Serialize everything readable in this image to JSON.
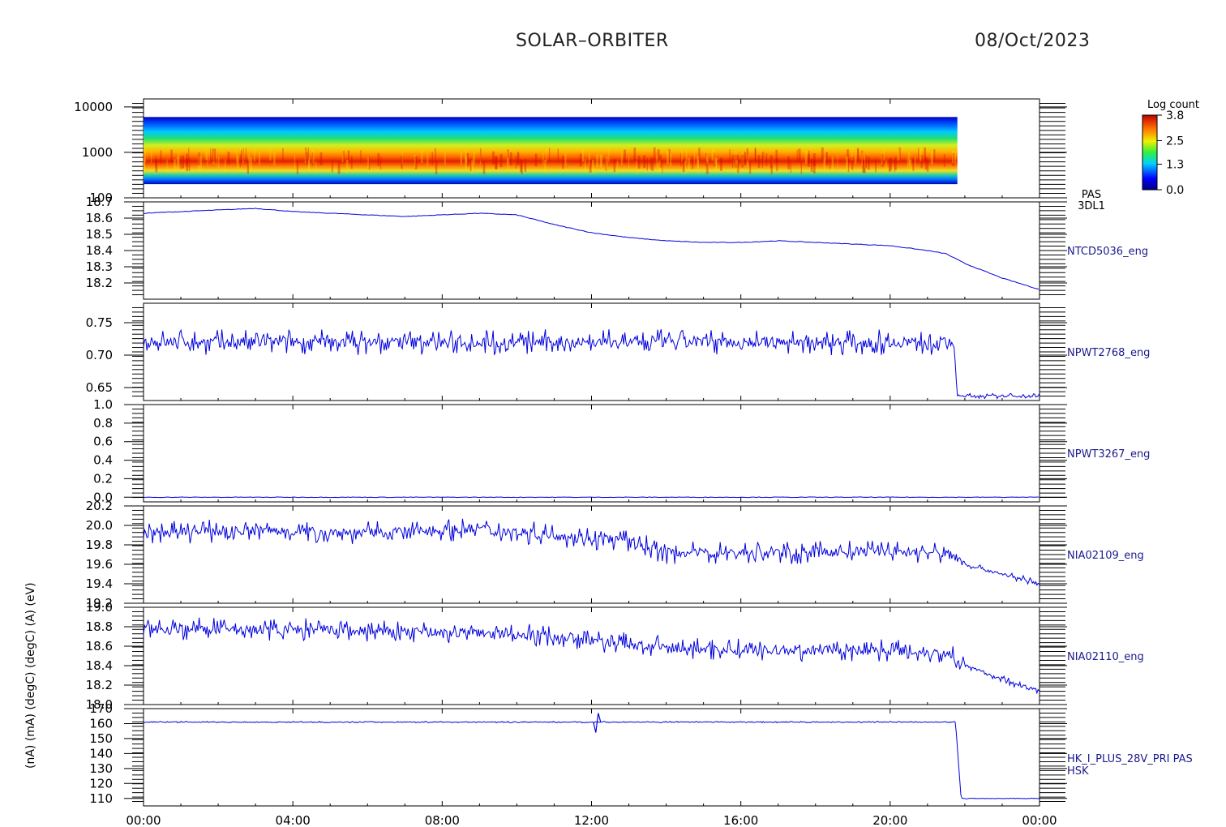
{
  "header": {
    "mission": "SOLAR–ORBITER",
    "date": "08/Oct/2023"
  },
  "colors": {
    "trace": "#0000dd",
    "axis": "#000000",
    "label_text": "#000000",
    "side_label_text": "#1a1a8c"
  },
  "x_axis": {
    "range_hours": [
      0,
      24
    ],
    "ticks": [
      "00:00",
      "04:00",
      "08:00",
      "12:00",
      "16:00",
      "20:00",
      "00:00"
    ]
  },
  "colorbar": {
    "title": "Log count",
    "ticks": [
      "3.8",
      "2.5",
      "1.3",
      "0.0"
    ],
    "range": [
      0.0,
      3.8
    ]
  },
  "left_axis_title": "(nA) (mA) (degC) (degC) (A) (eV)",
  "chart_data": [
    {
      "type": "heatmap",
      "panel": "PAS 3DL1 energy spectrogram",
      "side_label": [
        "PAS",
        "3DL1"
      ],
      "ylabel": "(eV)",
      "yscale": "log",
      "ylim": [
        100,
        15000
      ],
      "yticks": [
        "10000",
        "1000",
        "100"
      ],
      "data_coverage_hours": [
        0,
        21.8
      ],
      "peak_energy_eV": 650,
      "energy_band_eV": [
        200,
        6000
      ]
    },
    {
      "type": "line",
      "side_label": "NTCD5036_eng",
      "ylim": [
        18.1,
        18.7
      ],
      "yticks": [
        "18.7",
        "18.6",
        "18.5",
        "18.4",
        "18.3",
        "18.2"
      ],
      "x": [
        0,
        1,
        2,
        3,
        4,
        5,
        6,
        7,
        8,
        9,
        10,
        11,
        12,
        13,
        14,
        15,
        16,
        17,
        18,
        19,
        20,
        21,
        21.5,
        22,
        23,
        24
      ],
      "values": [
        18.63,
        18.64,
        18.65,
        18.66,
        18.64,
        18.63,
        18.62,
        18.61,
        18.62,
        18.63,
        18.62,
        18.56,
        18.51,
        18.48,
        18.46,
        18.45,
        18.45,
        18.46,
        18.45,
        18.44,
        18.43,
        18.4,
        18.38,
        18.32,
        18.23,
        18.16
      ]
    },
    {
      "type": "line",
      "side_label": "NPWT2768_eng",
      "ylim": [
        0.63,
        0.78
      ],
      "yticks": [
        "0.75",
        "0.70",
        "0.65"
      ],
      "x": [
        0,
        12,
        21.7,
        21.8,
        24
      ],
      "values": [
        0.72,
        0.72,
        0.72,
        0.637,
        0.637
      ],
      "noise_amplitude": [
        0.02,
        0.004
      ]
    },
    {
      "type": "line",
      "side_label": "NPWT3267_eng",
      "ylim": [
        -0.05,
        1.0
      ],
      "yticks": [
        "1.0",
        "0.8",
        "0.6",
        "0.4",
        "0.2",
        "0.0"
      ],
      "x": [
        0,
        24
      ],
      "values": [
        0.0,
        0.0
      ]
    },
    {
      "type": "line",
      "side_label": "NIA02109_eng",
      "ylim": [
        19.2,
        20.2
      ],
      "yticks": [
        "20.2",
        "20.0",
        "19.8",
        "19.6",
        "19.4",
        "19.2"
      ],
      "x": [
        0,
        3,
        6,
        9,
        11,
        13,
        14,
        16,
        18,
        20,
        21.7,
        22,
        23,
        24
      ],
      "values": [
        19.92,
        19.95,
        19.92,
        19.97,
        19.9,
        19.84,
        19.72,
        19.72,
        19.72,
        19.74,
        19.7,
        19.6,
        19.5,
        19.4
      ],
      "noise_amplitude": [
        0.12,
        0.04
      ]
    },
    {
      "type": "line",
      "side_label": "NIA02110_eng",
      "ylim": [
        18.0,
        19.0
      ],
      "yticks": [
        "19.0",
        "18.8",
        "18.6",
        "18.4",
        "18.2",
        "18.0"
      ],
      "x": [
        0,
        4,
        8,
        10.5,
        12,
        14,
        16,
        18,
        20,
        21.7,
        22,
        23,
        24
      ],
      "values": [
        18.78,
        18.77,
        18.74,
        18.72,
        18.66,
        18.58,
        18.56,
        18.56,
        18.56,
        18.52,
        18.4,
        18.26,
        18.14
      ],
      "noise_amplitude": [
        0.12,
        0.04
      ]
    },
    {
      "type": "line",
      "side_label": [
        "HK_I_PLUS_28V_PRI PAS",
        "HSK"
      ],
      "ylim": [
        105,
        170
      ],
      "yticks": [
        "170",
        "160",
        "150",
        "140",
        "130",
        "120",
        "110"
      ],
      "x": [
        0,
        12,
        21.75,
        21.9,
        24
      ],
      "values": [
        161,
        161,
        161,
        110,
        110
      ],
      "noise_amplitude": [
        0.5,
        0.3
      ]
    }
  ]
}
